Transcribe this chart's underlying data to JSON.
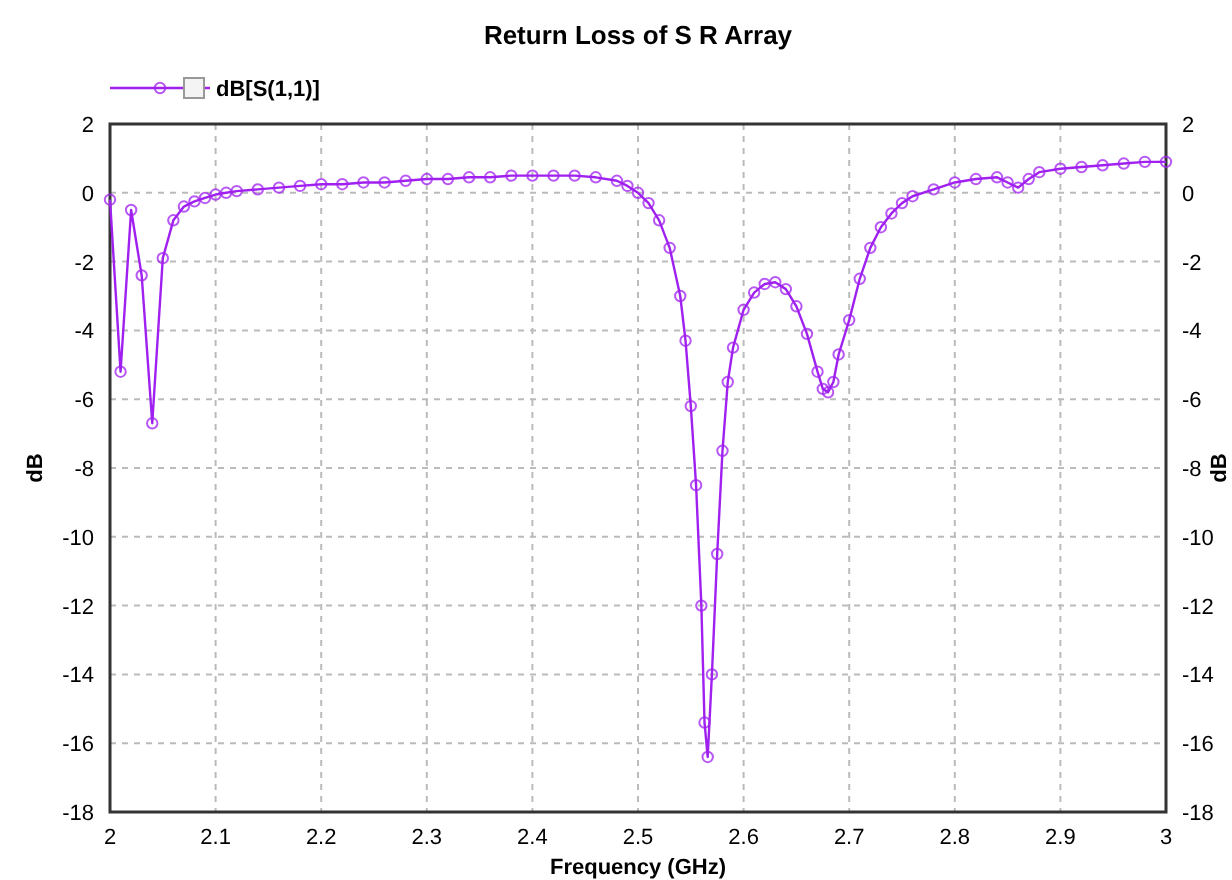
{
  "chart_data": {
    "type": "line",
    "title": "Return Loss of S R Array",
    "xlabel": "Frequency (GHz)",
    "ylabel": "dB",
    "y2label": "dB",
    "x": [
      2,
      2.01,
      2.02,
      2.03,
      2.04,
      2.05,
      2.06,
      2.07,
      2.08,
      2.09,
      2.1,
      2.11,
      2.12,
      2.14,
      2.16,
      2.18,
      2.2,
      2.22,
      2.24,
      2.26,
      2.28,
      2.3,
      2.32,
      2.34,
      2.36,
      2.38,
      2.4,
      2.42,
      2.44,
      2.46,
      2.48,
      2.49,
      2.5,
      2.51,
      2.52,
      2.53,
      2.54,
      2.545,
      2.55,
      2.555,
      2.56,
      2.563,
      2.566,
      2.57,
      2.575,
      2.58,
      2.585,
      2.59,
      2.6,
      2.61,
      2.62,
      2.63,
      2.64,
      2.65,
      2.66,
      2.67,
      2.675,
      2.68,
      2.685,
      2.69,
      2.7,
      2.71,
      2.72,
      2.73,
      2.74,
      2.75,
      2.76,
      2.78,
      2.8,
      2.82,
      2.84,
      2.85,
      2.86,
      2.87,
      2.88,
      2.9,
      2.92,
      2.94,
      2.96,
      2.98,
      3
    ],
    "series": [
      {
        "name": "dB[S(1,1)]",
        "color": "#a020f0",
        "values": [
          -0.2,
          -5.2,
          -0.5,
          -2.4,
          -6.7,
          -1.9,
          -0.8,
          -0.4,
          -0.25,
          -0.15,
          -0.05,
          0,
          0.05,
          0.1,
          0.15,
          0.2,
          0.25,
          0.25,
          0.3,
          0.3,
          0.35,
          0.4,
          0.4,
          0.45,
          0.45,
          0.5,
          0.5,
          0.5,
          0.5,
          0.45,
          0.35,
          0.2,
          0,
          -0.3,
          -0.8,
          -1.6,
          -3,
          -4.3,
          -6.2,
          -8.5,
          -12,
          -15.4,
          -16.4,
          -14,
          -10.5,
          -7.5,
          -5.5,
          -4.5,
          -3.4,
          -2.9,
          -2.65,
          -2.6,
          -2.8,
          -3.3,
          -4.1,
          -5.2,
          -5.7,
          -5.8,
          -5.5,
          -4.7,
          -3.7,
          -2.5,
          -1.6,
          -1,
          -0.6,
          -0.3,
          -0.1,
          0.1,
          0.3,
          0.4,
          0.45,
          0.3,
          0.15,
          0.4,
          0.6,
          0.7,
          0.75,
          0.8,
          0.85,
          0.9,
          0.9
        ]
      }
    ],
    "xlim": [
      2,
      3
    ],
    "xticks": [
      2,
      2.1,
      2.2,
      2.3,
      2.4,
      2.5,
      2.6,
      2.7,
      2.8,
      2.9,
      3
    ],
    "ylim": [
      -18,
      2
    ],
    "yticks": [
      -18,
      -16,
      -14,
      -12,
      -10,
      -8,
      -6,
      -4,
      -2,
      0,
      2
    ],
    "y2lim": [
      -18,
      2
    ],
    "y2ticks": [
      -18,
      -16,
      -14,
      -12,
      -10,
      -8,
      -6,
      -4,
      -2,
      0,
      2
    ],
    "grid": true,
    "legend": "top left",
    "marker": "circle",
    "line_style": "solid"
  }
}
